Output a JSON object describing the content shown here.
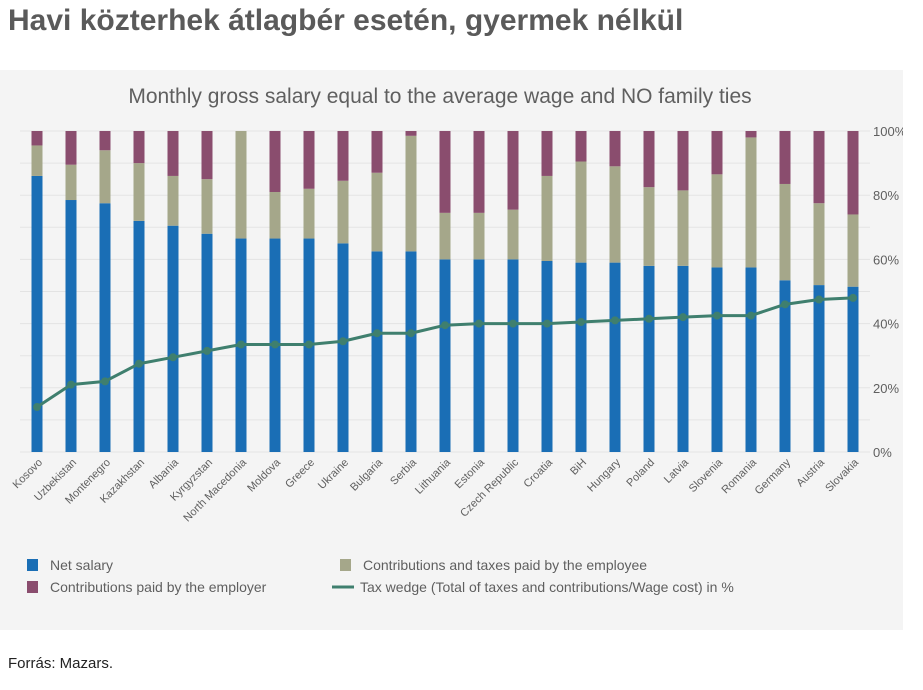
{
  "page": {
    "title": "Havi közterhek átlagbér esetén, gyermek nélkül",
    "source": "Forrás: Mazars."
  },
  "colors": {
    "net_salary": "#1a6eb5",
    "employee_contrib": "#a5a78a",
    "employer_contrib": "#8a4d6e",
    "tax_wedge": "#3f7f6e",
    "grid": "#e3e3e3",
    "text": "#5f5f5f",
    "panel_bg": "#f4f4f4"
  },
  "chart_data": {
    "type": "bar",
    "stacked": true,
    "title": "Monthly gross salary equal to the average wage and NO family ties",
    "categories": [
      "Kosovo",
      "Uzbekistan",
      "Montenegro",
      "Kazakhstan",
      "Albania",
      "Kyrgyzstan",
      "North Macedonia",
      "Moldova",
      "Greece",
      "Ukraine",
      "Bulgaria",
      "Serbia",
      "Lithuania",
      "Estonia",
      "Czech Republic",
      "Croatia",
      "BiH",
      "Hungary",
      "Poland",
      "Latvia",
      "Slovenia",
      "Romania",
      "Germany",
      "Austria",
      "Slovakia"
    ],
    "series": [
      {
        "name": "Net salary",
        "kind": "bar",
        "color_key": "net_salary",
        "values": [
          86,
          78.5,
          77.5,
          72,
          70.5,
          68,
          66.5,
          66.5,
          66.5,
          65,
          62.5,
          62.5,
          60,
          60,
          60,
          59.5,
          59,
          59,
          58,
          58,
          57.5,
          57.5,
          53.5,
          52,
          51.5
        ]
      },
      {
        "name": "Contributions and taxes paid by the employee",
        "kind": "bar",
        "color_key": "employee_contrib",
        "values": [
          9.5,
          11,
          16.5,
          18,
          15.5,
          17,
          33.5,
          14.5,
          15.5,
          19.5,
          24.5,
          36,
          14.5,
          14.5,
          15.5,
          26.5,
          31.5,
          30,
          24.5,
          23.5,
          29,
          40.5,
          30,
          25.5,
          22.5
        ]
      },
      {
        "name": "Contributions paid by the employer",
        "kind": "bar",
        "color_key": "employer_contrib",
        "values": [
          4.5,
          10.5,
          6,
          10,
          14,
          15,
          0,
          19,
          18,
          15.5,
          13,
          1.5,
          25.5,
          25.5,
          24.5,
          14,
          9.5,
          11,
          17.5,
          18.5,
          13.5,
          2,
          16.5,
          22.5,
          26
        ]
      },
      {
        "name": "Tax wedge (Total of taxes and contributions/Wage cost) in %",
        "kind": "line",
        "color_key": "tax_wedge",
        "values": [
          14,
          21,
          22,
          27.5,
          29.5,
          31.5,
          33.5,
          33.5,
          33.5,
          34.5,
          37,
          37,
          39.5,
          40,
          40,
          40,
          40.5,
          41,
          41.5,
          42,
          42.5,
          42.5,
          46,
          47.5,
          48
        ]
      }
    ],
    "yticks": [
      "0%",
      "20%",
      "40%",
      "60%",
      "80%",
      "100%"
    ],
    "ylim": [
      0,
      100
    ],
    "grid": true,
    "legend": "bottom"
  }
}
